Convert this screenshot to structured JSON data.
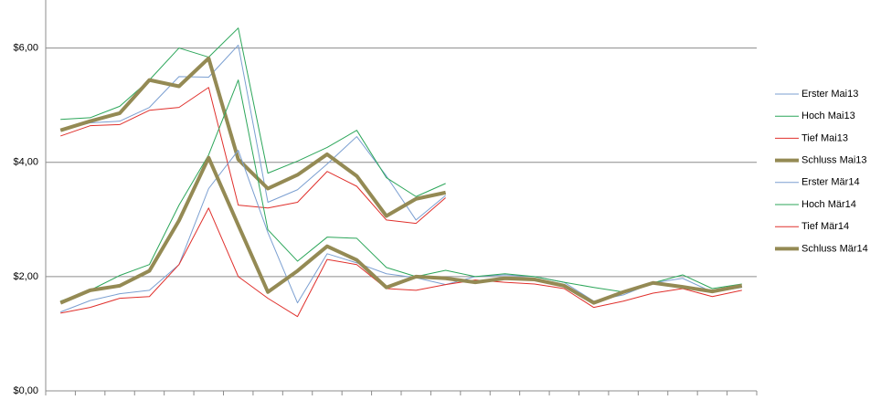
{
  "chart_data": {
    "type": "line",
    "categories": [
      null,
      null,
      null,
      null,
      null,
      null,
      null,
      null,
      null,
      null,
      null,
      null,
      null,
      null,
      null,
      null,
      null,
      null,
      null,
      null,
      null,
      null,
      null,
      null
    ],
    "ylim": [
      0,
      7
    ],
    "yticks": [
      {
        "value": 0,
        "label": "$0,00"
      },
      {
        "value": 2,
        "label": "$2,00"
      },
      {
        "value": 4,
        "label": "$4,00"
      },
      {
        "value": 6,
        "label": "$6,00"
      }
    ],
    "grid": true,
    "legend": "right",
    "series": [
      {
        "name": "Erster Mai13",
        "color": "#7b9fd1",
        "width": 1,
        "values": [
          4.56,
          4.69,
          4.72,
          4.96,
          5.5,
          5.49,
          6.05,
          3.3,
          3.52,
          3.97,
          4.45,
          3.76,
          2.99,
          3.42,
          null,
          null,
          null,
          null,
          null,
          null,
          null,
          null,
          null,
          null
        ]
      },
      {
        "name": "Hoch Mai13",
        "color": "#2ca65a",
        "width": 1,
        "values": [
          4.75,
          4.78,
          4.98,
          5.44,
          6.0,
          5.84,
          6.35,
          3.81,
          4.02,
          4.26,
          4.56,
          3.73,
          3.4,
          3.63,
          null,
          null,
          null,
          null,
          null,
          null,
          null,
          null,
          null,
          null
        ]
      },
      {
        "name": "Tief Mai13",
        "color": "#e0302c",
        "width": 1,
        "values": [
          4.46,
          4.64,
          4.66,
          4.91,
          4.96,
          5.31,
          3.25,
          3.2,
          3.3,
          3.84,
          3.58,
          2.99,
          2.93,
          3.38,
          null,
          null,
          null,
          null,
          null,
          null,
          null,
          null,
          null,
          null
        ]
      },
      {
        "name": "Schluss Mai13",
        "color": "#948a54",
        "width": 4,
        "values": [
          4.56,
          4.72,
          4.86,
          5.44,
          5.33,
          5.82,
          4.05,
          3.54,
          3.78,
          4.14,
          3.76,
          3.06,
          3.36,
          3.47,
          null,
          null,
          null,
          null,
          null,
          null,
          null,
          null,
          null,
          null
        ]
      },
      {
        "name": "Erster Mär14",
        "color": "#7b9fd1",
        "width": 1,
        "values": [
          1.38,
          1.58,
          1.7,
          1.76,
          2.21,
          3.54,
          4.21,
          2.77,
          1.54,
          2.4,
          2.24,
          2.05,
          1.98,
          1.86,
          2.0,
          2.03,
          2.0,
          1.9,
          1.57,
          1.68,
          1.89,
          1.97,
          1.73,
          1.81
        ]
      },
      {
        "name": "Hoch Mär14",
        "color": "#2ca65a",
        "width": 1,
        "values": [
          1.57,
          1.76,
          2.02,
          2.21,
          3.25,
          4.13,
          5.44,
          2.82,
          2.27,
          2.69,
          2.67,
          2.16,
          2.0,
          2.11,
          2.0,
          2.05,
          2.0,
          1.9,
          1.81,
          1.73,
          1.89,
          2.03,
          1.79,
          1.87
        ]
      },
      {
        "name": "Tief Mär14",
        "color": "#e0302c",
        "width": 1,
        "values": [
          1.36,
          1.46,
          1.62,
          1.65,
          2.21,
          3.2,
          2.0,
          1.62,
          1.3,
          2.3,
          2.21,
          1.79,
          1.76,
          1.86,
          1.94,
          1.9,
          1.87,
          1.79,
          1.46,
          1.57,
          1.71,
          1.79,
          1.65,
          1.76
        ]
      },
      {
        "name": "Schluss Mär14",
        "color": "#948a54",
        "width": 4,
        "values": [
          1.54,
          1.76,
          1.84,
          2.1,
          2.98,
          4.08,
          2.9,
          1.73,
          2.1,
          2.53,
          2.29,
          1.81,
          2.0,
          1.97,
          1.9,
          1.97,
          1.95,
          1.84,
          1.54,
          1.73,
          1.89,
          1.82,
          1.74,
          1.84
        ]
      }
    ]
  }
}
